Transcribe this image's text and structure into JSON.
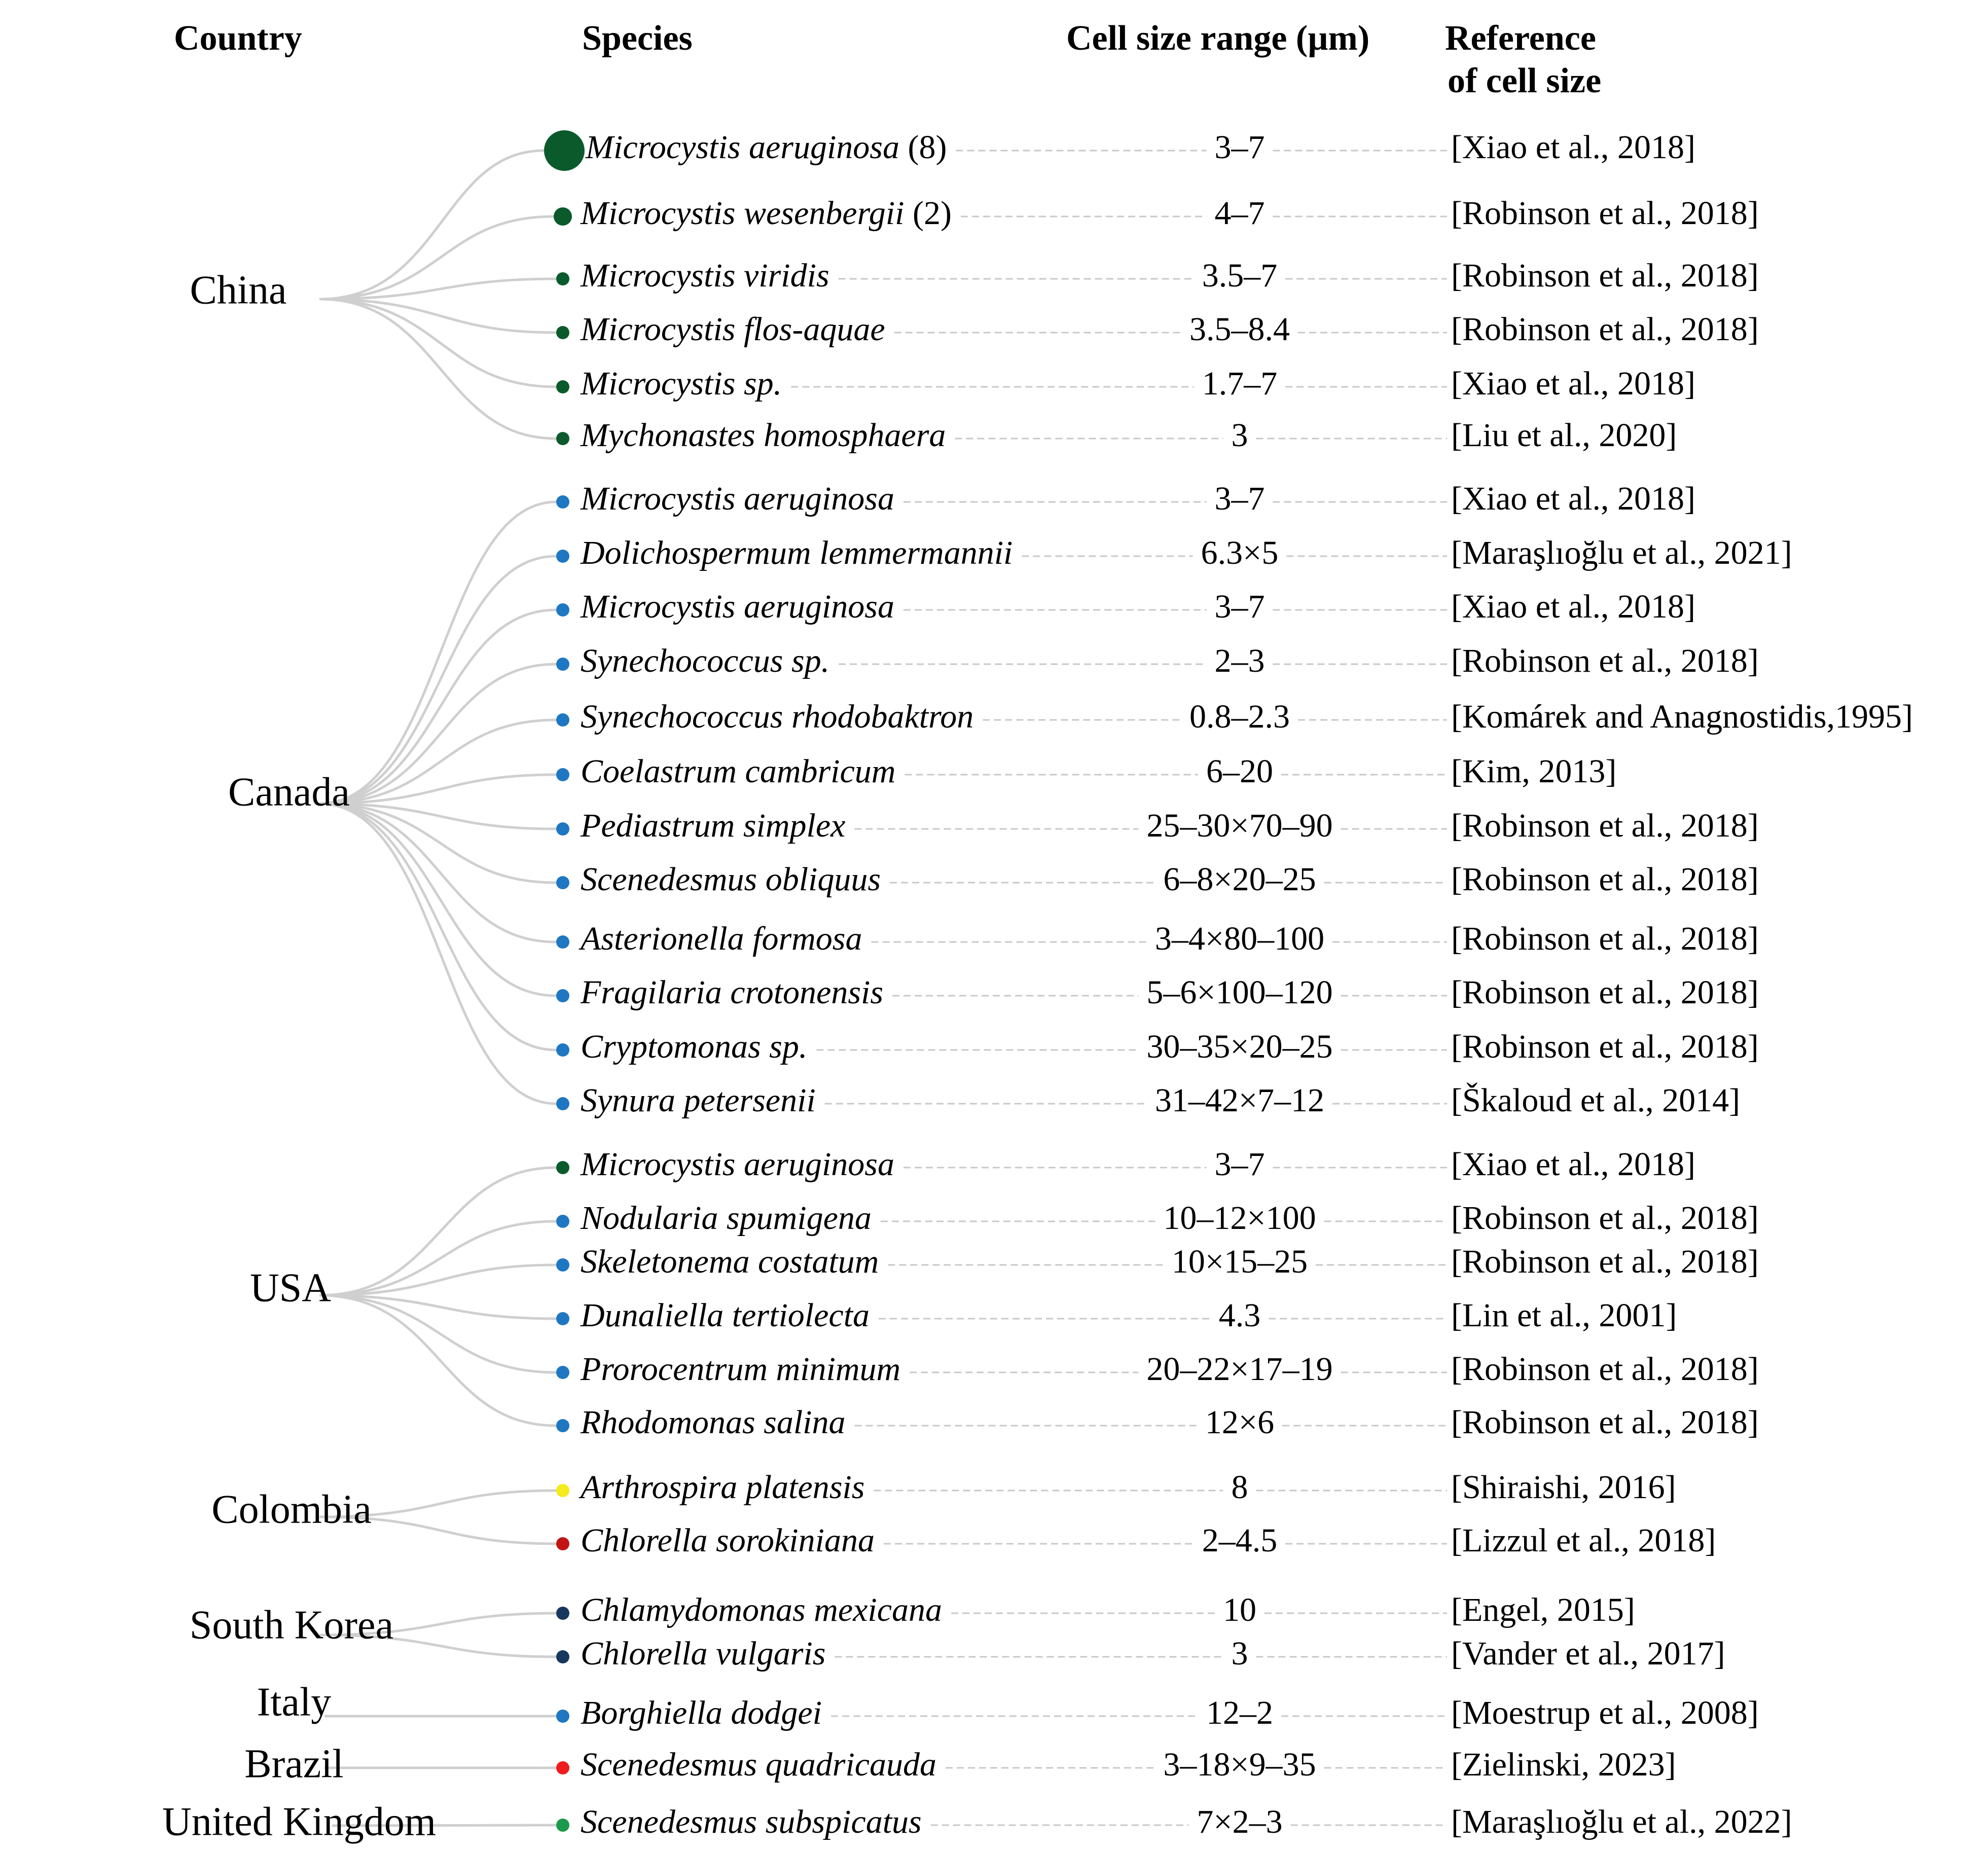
{
  "headers": {
    "country": "Country",
    "species": "Species",
    "cell_size": "Cell size range (µm)",
    "reference_line1": "Reference",
    "reference_line2": "of cell size"
  },
  "colors": {
    "dark_green": "#0b5a2b",
    "blue": "#1f77c2",
    "navy": "#17375e",
    "yellow": "#f4ea1c",
    "red": "#c21414",
    "bright_red": "#ee1c1c",
    "green": "#1a9a4a",
    "branch": "#cfcfcf",
    "leader": "#c8c8c8"
  },
  "groups": [
    {
      "country": "China",
      "items": [
        {
          "species": "Microcystis aeruginosa",
          "count": "(8)",
          "size": "3–7",
          "reference": "[Xiao et al., 2018]",
          "color": "#0b5a2b",
          "marker": "large"
        },
        {
          "species": "Microcystis wesenbergii",
          "count": "(2)",
          "size": "4–7",
          "reference": "[Robinson et al., 2018]",
          "color": "#0b5a2b",
          "marker": "medium"
        },
        {
          "species": "Microcystis viridis",
          "size": "3.5–7",
          "reference": "[Robinson et al., 2018]",
          "color": "#0b5a2b",
          "marker": "small"
        },
        {
          "species": "Microcystis flos-aquae",
          "size": "3.5–8.4",
          "reference": "[Robinson et al., 2018]",
          "color": "#0b5a2b",
          "marker": "small"
        },
        {
          "species": "Microcystis sp.",
          "size": "1.7–7",
          "reference": "[Xiao et al., 2018]",
          "color": "#0b5a2b",
          "marker": "small"
        },
        {
          "species": "Mychonastes homosphaera",
          "size": "3",
          "reference": "[Liu et al., 2020]",
          "color": "#0b5a2b",
          "marker": "small"
        }
      ]
    },
    {
      "country": "Canada",
      "items": [
        {
          "species": "Microcystis aeruginosa",
          "size": "3–7",
          "reference": "[Xiao et al., 2018]",
          "color": "#1f77c2",
          "marker": "small"
        },
        {
          "species": "Dolichospermum lemmermannii",
          "size": "6.3×5",
          "reference": "[Maraşlıoğlu et al., 2021]",
          "color": "#1f77c2",
          "marker": "small"
        },
        {
          "species": "Microcystis aeruginosa",
          "size": "3–7",
          "reference": "[Xiao et al., 2018]",
          "color": "#1f77c2",
          "marker": "small"
        },
        {
          "species": "Synechococcus sp.",
          "size": "2–3",
          "reference": "[Robinson et al., 2018]",
          "color": "#1f77c2",
          "marker": "small"
        },
        {
          "species": "Synechococcus rhodobaktron",
          "size": "0.8–2.3",
          "reference": "[Komárek and Anagnostidis,1995]",
          "color": "#1f77c2",
          "marker": "small"
        },
        {
          "species": "Coelastrum cambricum",
          "size": "6–20",
          "reference": "[Kim, 2013]",
          "color": "#1f77c2",
          "marker": "small"
        },
        {
          "species": "Pediastrum simplex",
          "size": "25–30×70–90",
          "reference": "[Robinson et al., 2018]",
          "color": "#1f77c2",
          "marker": "small"
        },
        {
          "species": "Scenedesmus obliquus",
          "size": "6–8×20–25",
          "reference": "[Robinson et al., 2018]",
          "color": "#1f77c2",
          "marker": "small"
        },
        {
          "species": "Asterionella formosa",
          "size": "3–4×80–100",
          "reference": "[Robinson et al., 2018]",
          "color": "#1f77c2",
          "marker": "small"
        },
        {
          "species": "Fragilaria crotonensis",
          "size": "5–6×100–120",
          "reference": "[Robinson et al., 2018]",
          "color": "#1f77c2",
          "marker": "small"
        },
        {
          "species": "Cryptomonas sp.",
          "size": "30–35×20–25",
          "reference": "[Robinson et al., 2018]",
          "color": "#1f77c2",
          "marker": "small"
        },
        {
          "species": "Synura petersenii",
          "size": "31–42×7–12",
          "reference": "[Škaloud et al., 2014]",
          "color": "#1f77c2",
          "marker": "small"
        }
      ]
    },
    {
      "country": "USA",
      "items": [
        {
          "species": "Microcystis aeruginosa",
          "size": "3–7",
          "reference": "[Xiao et al., 2018]",
          "color": "#0b5a2b",
          "marker": "small"
        },
        {
          "species": "Nodularia spumigena",
          "size": "10–12×100",
          "reference": "[Robinson et al., 2018]",
          "color": "#1f77c2",
          "marker": "small"
        },
        {
          "species": "Skeletonema costatum",
          "size": "10×15–25",
          "reference": "[Robinson et al., 2018]",
          "color": "#1f77c2",
          "marker": "small"
        },
        {
          "species": "Dunaliella tertiolecta",
          "size": "4.3",
          "reference": "[Lin et al., 2001]",
          "color": "#1f77c2",
          "marker": "small"
        },
        {
          "species": "Prorocentrum minimum",
          "size": "20–22×17–19",
          "reference": "[Robinson et al., 2018]",
          "color": "#1f77c2",
          "marker": "small"
        },
        {
          "species": "Rhodomonas salina",
          "size": "12×6",
          "reference": "[Robinson et al., 2018]",
          "color": "#1f77c2",
          "marker": "small"
        }
      ]
    },
    {
      "country": "Colombia",
      "items": [
        {
          "species": "Arthrospira platensis",
          "size": "8",
          "reference": "[Shiraishi, 2016]",
          "color": "#f4ea1c",
          "marker": "small"
        },
        {
          "species": "Chlorella sorokiniana",
          "size": "2–4.5",
          "reference": "[Lizzul et al., 2018]",
          "color": "#c21414",
          "marker": "small"
        }
      ]
    },
    {
      "country": "South Korea",
      "items": [
        {
          "species": "Chlamydomonas mexicana",
          "size": "10",
          "reference": "[Engel, 2015]",
          "color": "#17375e",
          "marker": "small"
        },
        {
          "species": "Chlorella vulgaris",
          "size": "3",
          "reference": "[Vander et al., 2017]",
          "color": "#17375e",
          "marker": "small"
        }
      ]
    },
    {
      "country": "Italy",
      "items": [
        {
          "species": "Borghiella dodgei",
          "size": "12–2",
          "reference": "[Moestrup et al., 2008]",
          "color": "#1f77c2",
          "marker": "small"
        }
      ]
    },
    {
      "country": "Brazil",
      "items": [
        {
          "species": "Scenedesmus quadricauda",
          "size": "3–18×9–35",
          "reference": "[Zielinski, 2023]",
          "color": "#ee1c1c",
          "marker": "small"
        }
      ]
    },
    {
      "country": "United Kingdom",
      "items": [
        {
          "species": "Scenedesmus subspicatus",
          "size": "7×2–3",
          "reference": "[Maraşlıoğlu et al., 2022]",
          "color": "#1a9a4a",
          "marker": "small"
        }
      ]
    }
  ]
}
